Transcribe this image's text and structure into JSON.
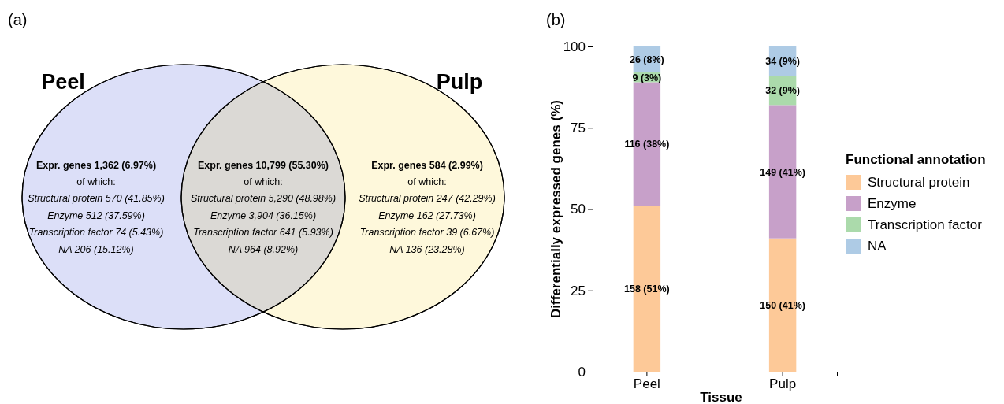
{
  "chart_data": [
    {
      "type": "other",
      "title": "(a)",
      "categories": [
        "Peel",
        "Pulp"
      ],
      "colors": [
        "#dcdff8",
        "#fef8db"
      ],
      "annotations": [
        "Expr. genes 1,362 (6.97%)",
        "of which:",
        "Structural protein 570 (41.85%)",
        "Enzyme 512 (37.59%)",
        "Transcription factor 74 (5.43%)",
        "NA 206 (15.12%)",
        "Expr. genes 10,799 (55.30%)",
        "of which:",
        "Structural protein 5,290 (48.98%)",
        "Enzyme 3,904 (36.15%)",
        "Transcription factor 641 (5.93%)",
        "NA 964 (8.92%)",
        "Expr. genes 584 (2.99%)",
        "of which:",
        "Structural protein 247 (42.29%)",
        "Enzyme 162 (27.73%)",
        "Transcription factor 39 (6.67%)",
        "NA 136 (23.28%)"
      ]
    },
    {
      "type": "bar",
      "title": "(b)",
      "stacked": true,
      "categories": [
        "Peel",
        "Pulp"
      ],
      "xlabel": "Tissue",
      "ylabel": "Differentially expressed genes (%)",
      "legend_title": "Functional annotation",
      "legend": "right",
      "ylim": [
        0,
        100
      ],
      "yticks": [
        0,
        25,
        50,
        75,
        100
      ],
      "series": [
        {
          "name": "Structural protein",
          "color": "#fdc998",
          "values": [
            51,
            41
          ],
          "value_labels": [
            "158 (51%)",
            "150 (41%)"
          ]
        },
        {
          "name": "Enzyme",
          "color": "#c7a0c9",
          "values": [
            38,
            41
          ],
          "value_labels": [
            "116 (38%)",
            "149 (41%)"
          ]
        },
        {
          "name": "Transcription factor",
          "color": "#abdaab",
          "values": [
            3,
            9
          ],
          "value_labels": [
            "9 (3%)",
            "32 (9%)"
          ]
        },
        {
          "name": "NA",
          "color": "#aecbe5",
          "values": [
            8,
            9
          ],
          "value_labels": [
            "26 (8%)",
            "34 (9%)"
          ]
        }
      ]
    }
  ]
}
